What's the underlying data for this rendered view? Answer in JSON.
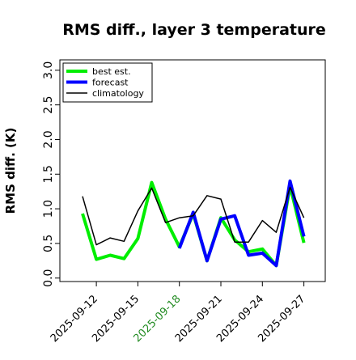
{
  "chart_data": {
    "type": "line",
    "title": "RMS diff., layer 3 temperature",
    "xlabel": "",
    "ylabel": "RMS diff. (K)",
    "x": [
      "2025-09-11",
      "2025-09-12",
      "2025-09-13",
      "2025-09-14",
      "2025-09-15",
      "2025-09-16",
      "2025-09-17",
      "2025-09-18",
      "2025-09-19",
      "2025-09-20",
      "2025-09-21",
      "2025-09-22",
      "2025-09-23",
      "2025-09-24",
      "2025-09-25",
      "2025-09-26",
      "2025-09-27"
    ],
    "xticks": [
      {
        "label": "2025-09-12",
        "color": "#000000"
      },
      {
        "label": "2025-09-15",
        "color": "#000000"
      },
      {
        "label": "2025-09-18",
        "color": "#228B22"
      },
      {
        "label": "2025-09-21",
        "color": "#000000"
      },
      {
        "label": "2025-09-24",
        "color": "#000000"
      },
      {
        "label": "2025-09-27",
        "color": "#000000"
      }
    ],
    "yticks": [
      "0.0",
      "0.5",
      "1.0",
      "1.5",
      "2.0",
      "2.5",
      "3.0"
    ],
    "ylim": [
      -0.05,
      3.15
    ],
    "grid": false,
    "legend_position": "top-left",
    "series": [
      {
        "name": "best est.",
        "color": "#00ee00",
        "values": [
          0.93,
          0.27,
          0.33,
          0.28,
          0.57,
          1.38,
          0.85,
          0.45,
          0.93,
          0.25,
          0.87,
          0.55,
          0.38,
          0.42,
          0.18,
          1.33,
          0.51
        ]
      },
      {
        "name": "forecast",
        "color": "#0000ff",
        "values": [
          null,
          null,
          null,
          null,
          null,
          null,
          null,
          0.43,
          0.95,
          0.25,
          0.85,
          0.9,
          0.33,
          0.36,
          0.18,
          1.4,
          0.6
        ]
      },
      {
        "name": "climatology",
        "color": "#000000",
        "values": [
          1.18,
          0.48,
          0.58,
          0.53,
          0.97,
          1.3,
          0.8,
          0.87,
          0.9,
          1.19,
          1.14,
          0.52,
          0.52,
          0.83,
          0.66,
          1.31,
          0.87
        ]
      }
    ]
  }
}
